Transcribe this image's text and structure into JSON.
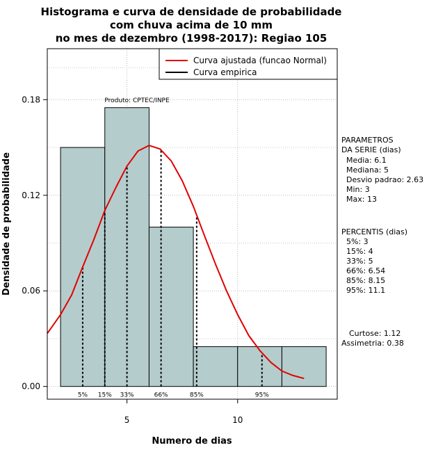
{
  "chart_data": {
    "type": "bar",
    "title": [
      "Histograma e curva de densidade de probabilidade",
      "com chuva acima de 10 mm",
      "no mes de dezembro (1998-2017): Regiao 105"
    ],
    "xlabel": "Numero de dias",
    "ylabel": "Densidade de probabilidade",
    "xlim": [
      1.4,
      14.5
    ],
    "ylim": [
      -0.008,
      0.212
    ],
    "x_ticks": [
      5,
      10
    ],
    "y_ticks": [
      0.0,
      0.06,
      0.12,
      0.18
    ],
    "y_tick_labels": [
      "0.00",
      "0.06",
      "0.12",
      "0.18"
    ],
    "grid": true,
    "bins": [
      {
        "left": 2,
        "right": 4,
        "value": 0.15
      },
      {
        "left": 4,
        "right": 6,
        "value": 0.175
      },
      {
        "left": 6,
        "right": 8,
        "value": 0.1
      },
      {
        "left": 8,
        "right": 10,
        "value": 0.025
      },
      {
        "left": 10,
        "right": 12,
        "value": 0.025
      },
      {
        "left": 12,
        "right": 14,
        "value": 0.025
      }
    ],
    "bar_color": "#b5cccc",
    "curve_color": "#e00000",
    "fitted_curve": {
      "name": "Curva ajustada (funcao Normal)",
      "x": [
        1.4,
        2.0,
        2.5,
        3.0,
        3.5,
        4.0,
        4.5,
        5.0,
        5.5,
        6.0,
        6.5,
        7.0,
        7.5,
        8.0,
        8.5,
        9.0,
        9.5,
        10.0,
        10.5,
        11.0,
        11.5,
        12.0,
        12.5,
        13.0
      ],
      "y": [
        0.0333,
        0.0451,
        0.0574,
        0.075,
        0.092,
        0.1105,
        0.1249,
        0.1383,
        0.1478,
        0.1513,
        0.149,
        0.1415,
        0.129,
        0.113,
        0.0947,
        0.0768,
        0.06,
        0.0451,
        0.032,
        0.0226,
        0.0151,
        0.0097,
        0.0069,
        0.005
      ]
    },
    "empirical_curve": {
      "name": "Curva empirica"
    },
    "percentile_lines": [
      {
        "x": 3.0,
        "label": "5%"
      },
      {
        "x": 4.0,
        "label": "15%"
      },
      {
        "x": 5.0,
        "label": "33%"
      },
      {
        "x": 6.54,
        "label": "66%"
      },
      {
        "x": 8.15,
        "label": "85%"
      },
      {
        "x": 11.1,
        "label": "95%"
      }
    ],
    "legend_position": "top-right",
    "annotation": "Produto: CPTEC/INPE"
  },
  "side_panel": {
    "parametros": [
      "PARAMETROS",
      "DA SERIE (dias)",
      "Media: 6.1",
      "Mediana: 5",
      "Desvio padrao: 2.63",
      "Min: 3",
      "Max: 13"
    ],
    "percentis": [
      "PERCENTIS (dias)",
      "5%: 3",
      "15%: 4",
      "33%: 5",
      "66%: 6.54",
      "85%: 8.15",
      "95%: 11.1"
    ],
    "curtose": "Curtose: 1.12",
    "assimetria": "Assimetria: 0.38"
  }
}
